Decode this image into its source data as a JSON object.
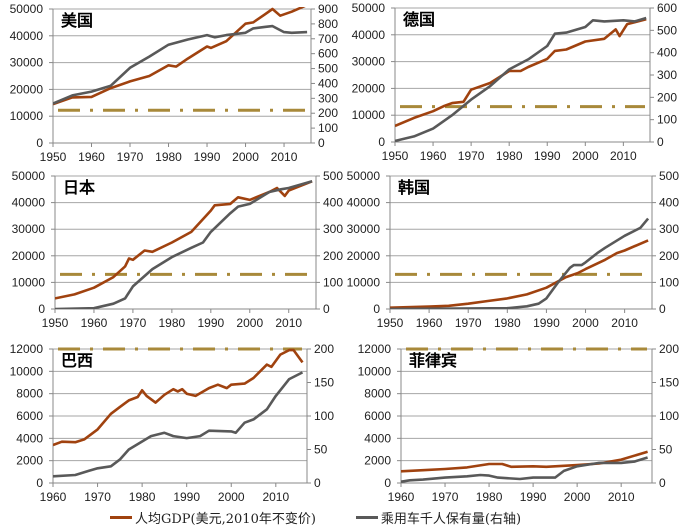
{
  "colors": {
    "gdp": "#a0420f",
    "cars": "#595959",
    "threshold": "#a8893a",
    "grid": "#a6a6a6"
  },
  "legend": {
    "gdp": "人均GDP(美元,2010年不变价)",
    "cars": "乘用车千人保有量(右轴)"
  },
  "chart_data": [
    {
      "type": "line",
      "title": "美国",
      "xlim": [
        1950,
        2017
      ],
      "ylim": [
        0,
        50000
      ],
      "y2lim": [
        0,
        900
      ],
      "xticks": [
        1950,
        1960,
        1970,
        1980,
        1990,
        2000,
        2010
      ],
      "yticks": [
        0,
        10000,
        20000,
        30000,
        40000,
        50000
      ],
      "y2ticks": [
        0,
        100,
        200,
        300,
        400,
        500,
        600,
        700,
        800,
        900
      ],
      "grid": true,
      "threshold": 12200,
      "series": [
        {
          "name": "人均GDP(美元,2010年不变价)",
          "axis": "left",
          "x": [
            1950,
            1955,
            1960,
            1965,
            1970,
            1975,
            1980,
            1982,
            1985,
            1990,
            1991,
            1995,
            2000,
            2002,
            2005,
            2007,
            2009,
            2012,
            2016
          ],
          "y": [
            14500,
            17000,
            17200,
            20500,
            23000,
            25000,
            29000,
            28500,
            31500,
            36000,
            35500,
            38000,
            44500,
            45000,
            48000,
            50000,
            47500,
            49000,
            51500
          ]
        },
        {
          "name": "乘用车千人保有量(右轴)",
          "axis": "right",
          "x": [
            1950,
            1955,
            1960,
            1965,
            1970,
            1975,
            1980,
            1985,
            1990,
            1992,
            1995,
            2000,
            2002,
            2005,
            2007,
            2010,
            2012,
            2016
          ],
          "y": [
            265,
            320,
            345,
            385,
            505,
            580,
            660,
            695,
            725,
            710,
            725,
            740,
            770,
            780,
            785,
            745,
            740,
            745
          ]
        }
      ]
    },
    {
      "type": "line",
      "title": "德国",
      "xlim": [
        1950,
        2017
      ],
      "ylim": [
        0,
        50000
      ],
      "y2lim": [
        0,
        600
      ],
      "xticks": [
        1950,
        1960,
        1970,
        1980,
        1990,
        2000,
        2010
      ],
      "yticks": [
        0,
        10000,
        20000,
        30000,
        40000,
        50000
      ],
      "y2ticks": [
        0,
        100,
        200,
        300,
        400,
        500,
        600
      ],
      "grid": true,
      "threshold": 13200,
      "series": [
        {
          "name": "人均GDP(美元,2010年不变价)",
          "axis": "left",
          "x": [
            1950,
            1955,
            1960,
            1963,
            1965,
            1968,
            1970,
            1975,
            1980,
            1983,
            1985,
            1990,
            1992,
            1995,
            2000,
            2005,
            2008,
            2009,
            2011,
            2016
          ],
          "y": [
            6000,
            9000,
            11500,
            13500,
            14500,
            15000,
            19500,
            22000,
            26500,
            26500,
            28000,
            31000,
            34000,
            34500,
            37500,
            38500,
            42000,
            39500,
            44000,
            45800
          ]
        },
        {
          "name": "乘用车千人保有量(右轴)",
          "axis": "right",
          "x": [
            1950,
            1955,
            1960,
            1965,
            1970,
            1975,
            1980,
            1985,
            1990,
            1992,
            1995,
            2000,
            2002,
            2005,
            2010,
            2013,
            2016
          ],
          "y": [
            5,
            25,
            60,
            120,
            190,
            250,
            325,
            370,
            430,
            485,
            490,
            515,
            545,
            540,
            545,
            540,
            555
          ]
        }
      ]
    },
    {
      "type": "line",
      "title": "日本",
      "xlim": [
        1950,
        2017
      ],
      "ylim": [
        0,
        50000
      ],
      "y2lim": [
        0,
        500
      ],
      "xticks": [
        1950,
        1960,
        1970,
        1980,
        1990,
        2000,
        2010
      ],
      "yticks": [
        0,
        10000,
        20000,
        30000,
        40000,
        50000
      ],
      "y2ticks": [
        0,
        100,
        200,
        300,
        400,
        500
      ],
      "grid": true,
      "threshold": 13000,
      "series": [
        {
          "name": "人均GDP(美元,2010年不变价)",
          "axis": "left",
          "x": [
            1950,
            1955,
            1960,
            1965,
            1968,
            1969,
            1970,
            1973,
            1975,
            1980,
            1985,
            1990,
            1991,
            1995,
            1997,
            2000,
            2005,
            2007,
            2009,
            2010,
            2016
          ],
          "y": [
            4000,
            5500,
            8000,
            12000,
            16000,
            19000,
            18500,
            22000,
            21500,
            25000,
            29000,
            37000,
            39000,
            39500,
            42000,
            41000,
            44000,
            45500,
            42500,
            44500,
            48000
          ]
        },
        {
          "name": "乘用车千人保有量(右轴)",
          "axis": "right",
          "x": [
            1950,
            1960,
            1965,
            1968,
            1970,
            1975,
            1980,
            1985,
            1988,
            1990,
            1995,
            1997,
            2000,
            2005,
            2008,
            2010,
            2016
          ],
          "y": [
            0,
            3,
            20,
            40,
            85,
            150,
            195,
            230,
            250,
            290,
            360,
            385,
            395,
            440,
            450,
            455,
            480
          ]
        }
      ]
    },
    {
      "type": "line",
      "title": "韩国",
      "xlim": [
        1950,
        2017
      ],
      "ylim": [
        0,
        50000
      ],
      "y2lim": [
        0,
        500
      ],
      "xticks": [
        1950,
        1960,
        1970,
        1980,
        1990,
        2000,
        2010
      ],
      "yticks": [
        0,
        10000,
        20000,
        30000,
        40000,
        50000
      ],
      "y2ticks": [
        0,
        100,
        200,
        300,
        400,
        500
      ],
      "grid": true,
      "threshold": 13000,
      "series": [
        {
          "name": "人均GDP(美元,2010年不变价)",
          "axis": "left",
          "x": [
            1950,
            1960,
            1965,
            1970,
            1975,
            1980,
            1985,
            1990,
            1995,
            1998,
            2000,
            2005,
            2008,
            2010,
            2016
          ],
          "y": [
            500,
            900,
            1200,
            2000,
            3000,
            4000,
            5500,
            8000,
            12000,
            13500,
            15000,
            18500,
            21000,
            22000,
            25800
          ]
        },
        {
          "name": "乘用车千人保有量(右轴)",
          "axis": "right",
          "x": [
            1950,
            1980,
            1985,
            1988,
            1990,
            1993,
            1996,
            1997,
            1999,
            2000,
            2003,
            2005,
            2010,
            2014,
            2016
          ],
          "y": [
            0,
            3,
            10,
            20,
            40,
            100,
            155,
            165,
            165,
            175,
            210,
            230,
            275,
            305,
            340
          ]
        }
      ]
    },
    {
      "type": "line",
      "title": "巴西",
      "xlim": [
        1960,
        2017
      ],
      "ylim": [
        0,
        12000
      ],
      "y2lim": [
        0,
        200
      ],
      "xticks": [
        1960,
        1970,
        1980,
        1990,
        2000,
        2010
      ],
      "yticks": [
        0,
        2000,
        4000,
        6000,
        8000,
        10000,
        12000
      ],
      "y2ticks": [
        0,
        50,
        100,
        150,
        200
      ],
      "grid": true,
      "threshold": 12000,
      "series": [
        {
          "name": "人均GDP(美元,2010年不变价)",
          "axis": "left",
          "x": [
            1960,
            1962,
            1965,
            1967,
            1970,
            1973,
            1975,
            1977,
            1979,
            1980,
            1981,
            1983,
            1985,
            1987,
            1988,
            1989,
            1990,
            1992,
            1995,
            1997,
            1999,
            2000,
            2003,
            2005,
            2008,
            2009,
            2011,
            2013,
            2014,
            2016
          ],
          "y": [
            3400,
            3700,
            3650,
            3900,
            4800,
            6200,
            6800,
            7400,
            7700,
            8300,
            7800,
            7200,
            7900,
            8400,
            8200,
            8400,
            8000,
            7800,
            8500,
            8800,
            8500,
            8800,
            8900,
            9400,
            10600,
            10400,
            11500,
            11900,
            11900,
            10800
          ]
        },
        {
          "name": "乘用车千人保有量(右轴)",
          "axis": "right",
          "x": [
            1960,
            1965,
            1968,
            1970,
            1973,
            1975,
            1977,
            1980,
            1982,
            1985,
            1987,
            1990,
            1993,
            1995,
            2000,
            2001,
            2003,
            2005,
            2008,
            2010,
            2013,
            2016
          ],
          "y": [
            10,
            12,
            18,
            22,
            25,
            35,
            50,
            62,
            70,
            75,
            70,
            67,
            70,
            78,
            77,
            75,
            90,
            95,
            110,
            130,
            155,
            165
          ]
        }
      ]
    },
    {
      "type": "line",
      "title": "菲律宾",
      "xlim": [
        1960,
        2017
      ],
      "ylim": [
        0,
        12000
      ],
      "y2lim": [
        0,
        200
      ],
      "xticks": [
        1960,
        1970,
        1980,
        1990,
        2000,
        2010
      ],
      "yticks": [
        0,
        2000,
        4000,
        6000,
        8000,
        10000,
        12000
      ],
      "y2ticks": [
        0,
        50,
        100,
        150,
        200
      ],
      "grid": true,
      "threshold": 12000,
      "series": [
        {
          "name": "人均GDP(美元,2010年不变价)",
          "axis": "left",
          "x": [
            1960,
            1965,
            1970,
            1975,
            1980,
            1983,
            1985,
            1990,
            1993,
            1995,
            2000,
            2005,
            2010,
            2016
          ],
          "y": [
            1050,
            1150,
            1250,
            1400,
            1700,
            1700,
            1450,
            1500,
            1450,
            1500,
            1600,
            1750,
            2100,
            2800
          ]
        },
        {
          "name": "乘用车千人保有量(右轴)",
          "axis": "right",
          "x": [
            1960,
            1962,
            1965,
            1970,
            1975,
            1978,
            1980,
            1982,
            1987,
            1990,
            1993,
            1995,
            1997,
            2000,
            2005,
            2007,
            2010,
            2013,
            2016
          ],
          "y": [
            2,
            4,
            5,
            8,
            10,
            12,
            11,
            8,
            6,
            8,
            8,
            8,
            18,
            25,
            30,
            30,
            30,
            32,
            38
          ]
        }
      ]
    }
  ]
}
